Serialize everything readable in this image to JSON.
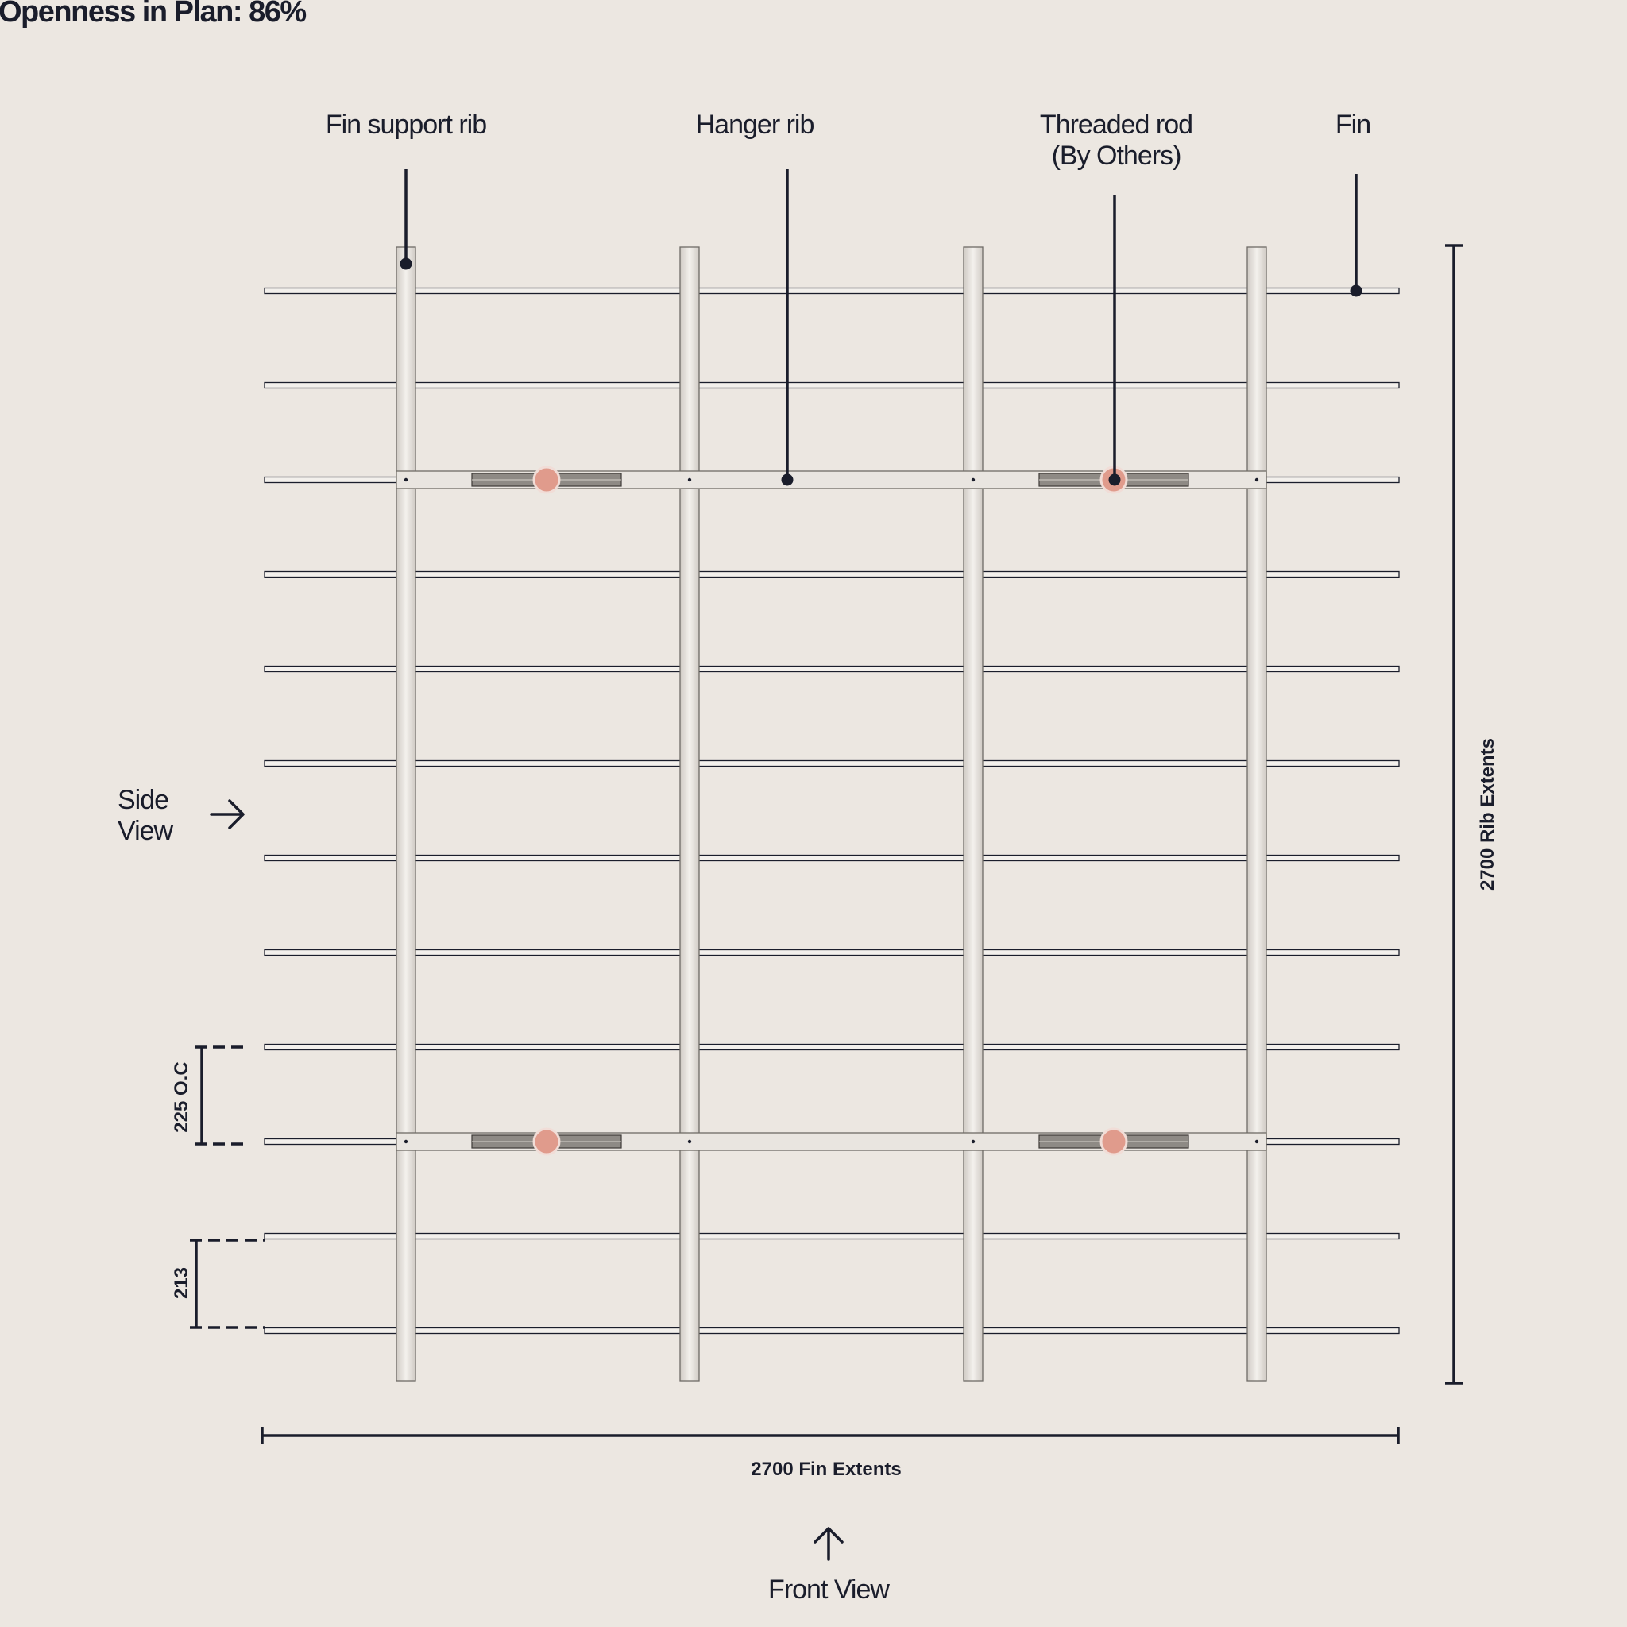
{
  "title": "Openness in Plan: 86%",
  "callouts": {
    "fin_support_rib": "Fin support rib",
    "hanger_rib": "Hanger rib",
    "threaded_rod_line1": "Threaded rod",
    "threaded_rod_line2": "(By Others)",
    "fin": "Fin"
  },
  "views": {
    "side_line1": "Side",
    "side_line2": "View",
    "front": "Front View"
  },
  "dimensions": {
    "fin_extents": "2700 Fin Extents",
    "rib_extents": "2700 Rib Extents",
    "rib_spacing": "225 O.C",
    "edge_spacing": "213"
  },
  "icons": {
    "side_view": "arrow-right-icon",
    "front_view": "arrow-up-icon"
  },
  "colors": {
    "background": "#ece7e1",
    "ink": "#1a1d2b",
    "fin_fill": "#f3f0ec",
    "rib_fill": "#dcd7d1",
    "rod_marker": "#e09b8c",
    "bracket": "#8e8a85"
  }
}
